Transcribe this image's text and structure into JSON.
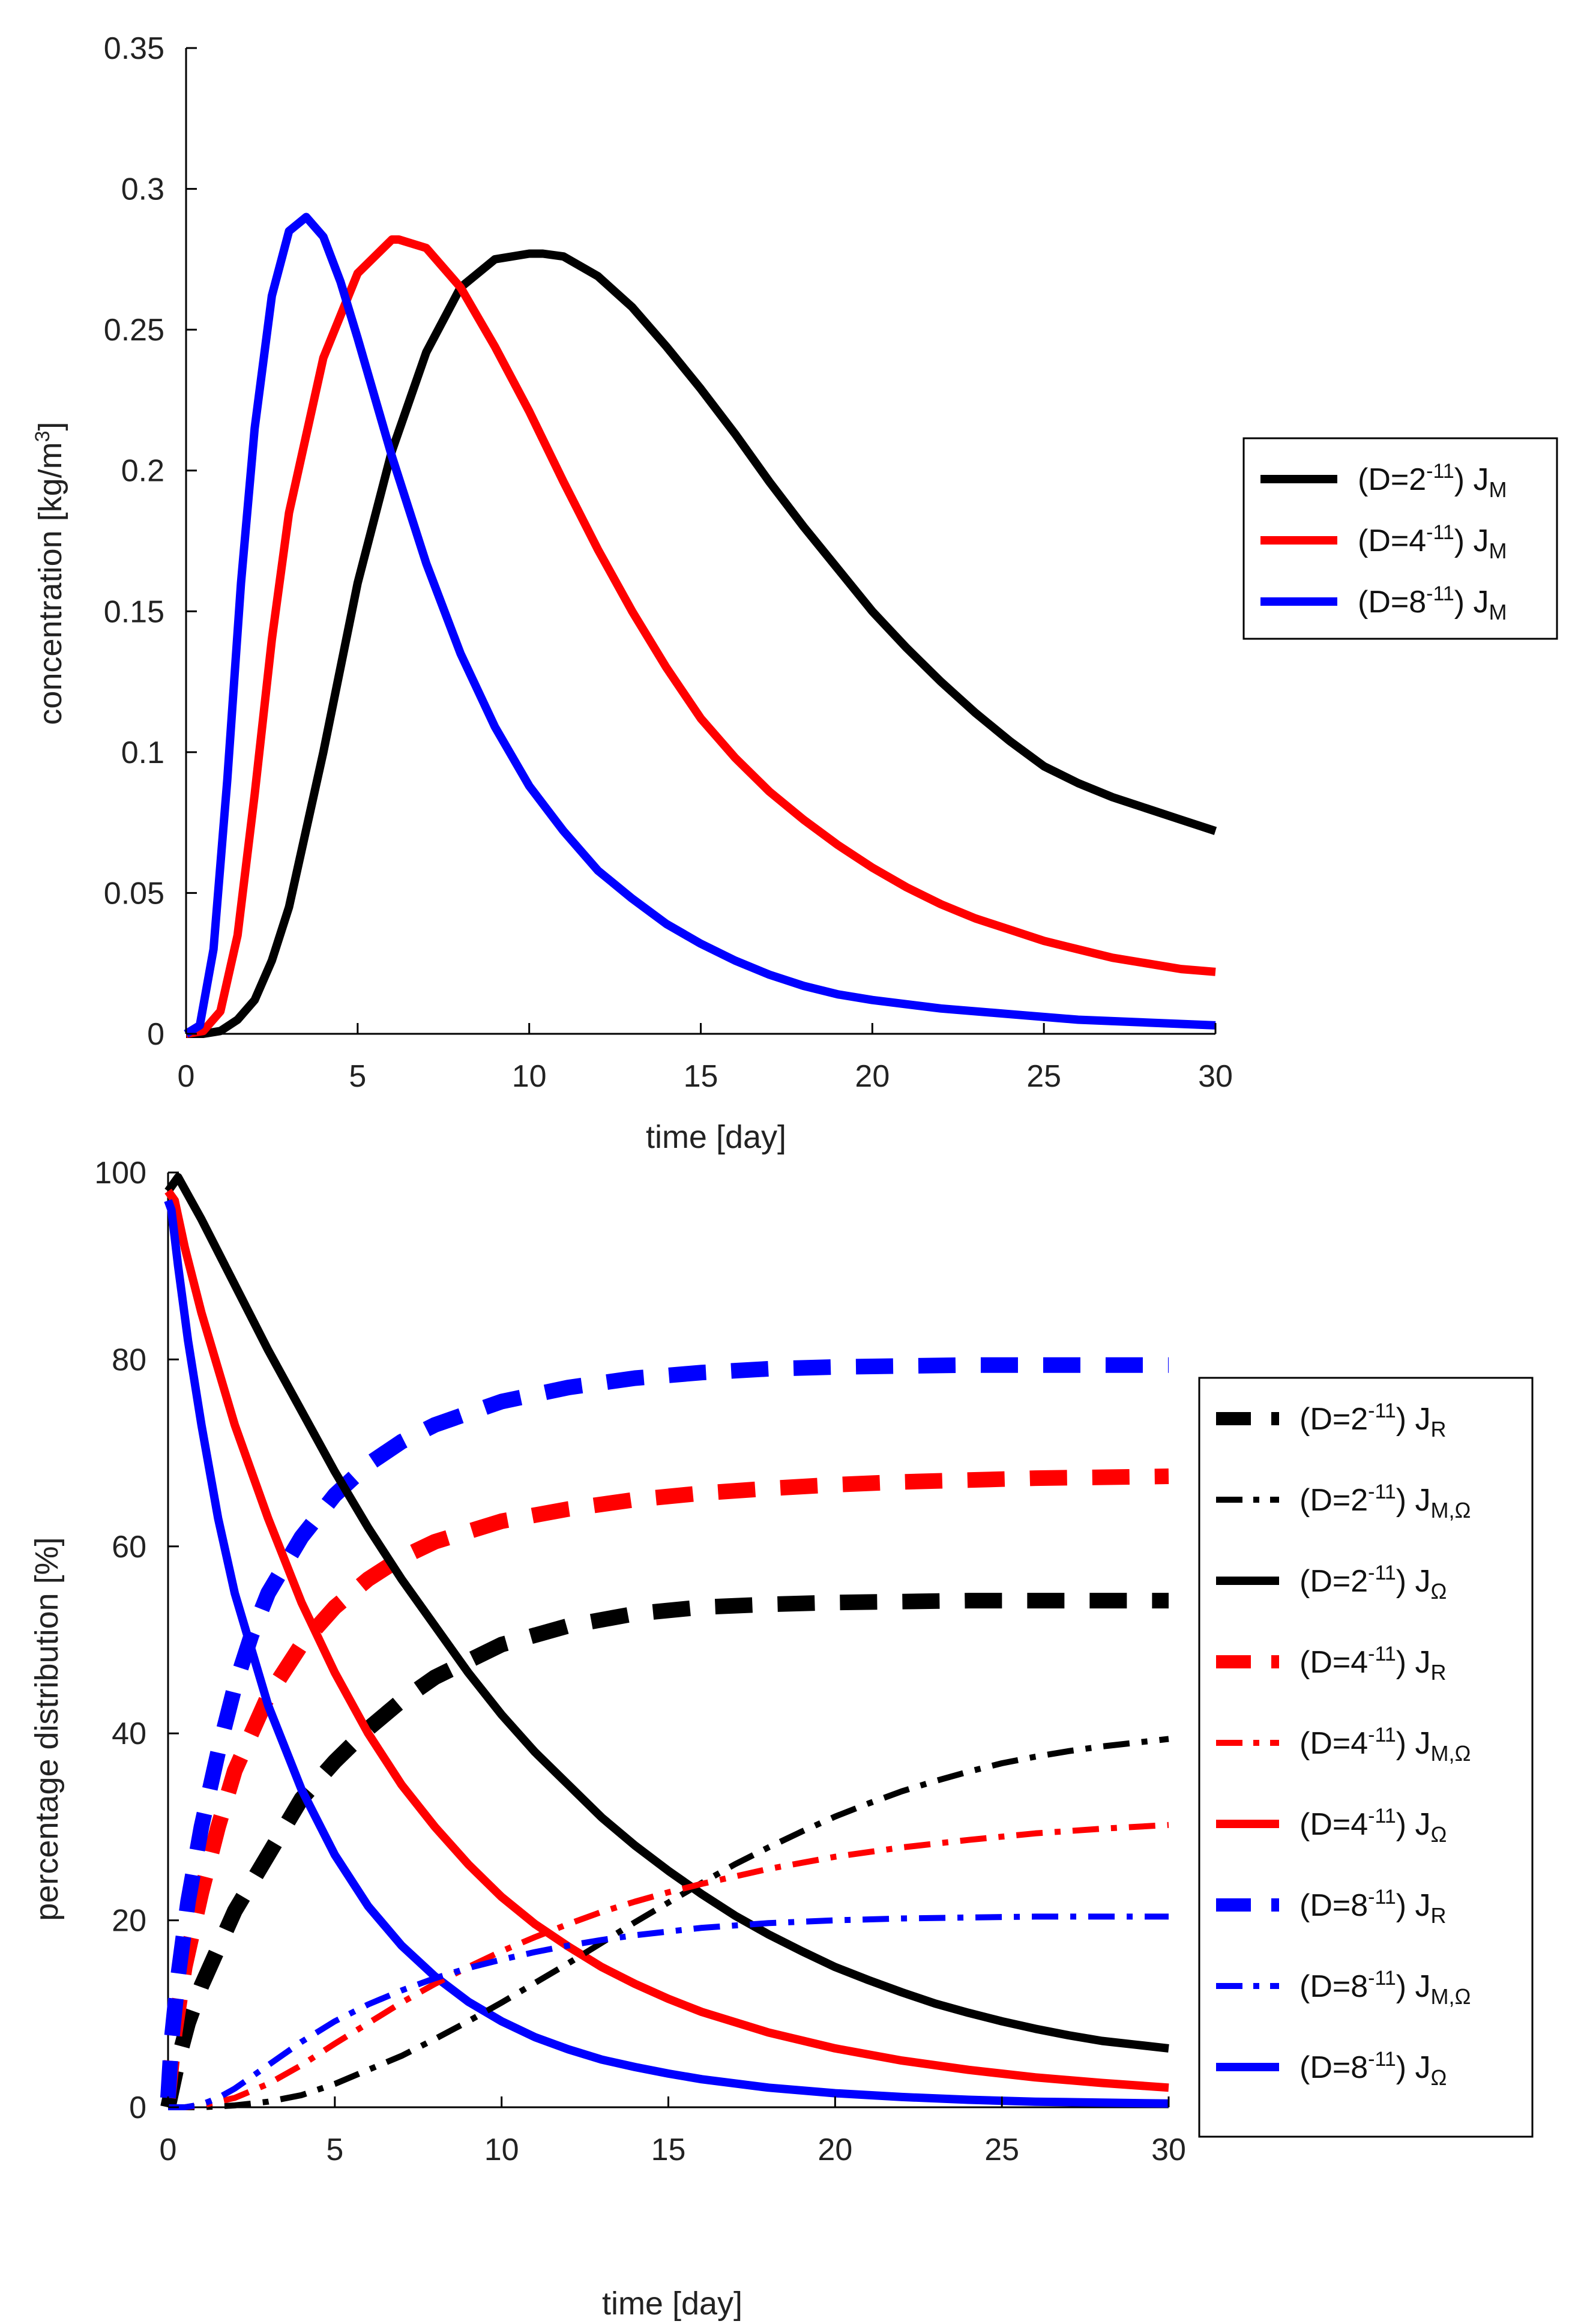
{
  "chart_data": [
    {
      "type": "line",
      "xlabel": "time [day]",
      "ylabel": "concentration [kg/m",
      "ylabel_sup": "3",
      "ylabel_tail": "]",
      "xlim": [
        0,
        30
      ],
      "ylim": [
        0,
        0.35
      ],
      "xticks": [
        0,
        5,
        10,
        15,
        20,
        25,
        30
      ],
      "xtick_labels": [
        "0",
        "5",
        "10",
        "15",
        "20",
        "25",
        "30"
      ],
      "yticks": [
        0,
        0.05,
        0.1,
        0.15,
        0.2,
        0.25,
        0.3,
        0.35
      ],
      "ytick_labels": [
        "0",
        "0.05",
        "0.1",
        "0.15",
        "0.2",
        "0.25",
        "0.3",
        "0.35"
      ],
      "legend_position": "right",
      "series": [
        {
          "name": "(D=2-11) JM",
          "label_pre": "(D=2",
          "label_sup": "-11",
          "label_mid": ") J",
          "label_sub": "M",
          "color": "#000000",
          "style": "solid",
          "x": [
            0,
            0.5,
            1,
            1.5,
            2,
            2.5,
            3,
            4,
            5,
            6,
            7,
            8,
            9,
            10,
            10.4,
            11,
            12,
            13,
            14,
            15,
            16,
            17,
            18,
            19,
            20,
            21,
            22,
            23,
            24,
            25,
            26,
            27,
            28,
            29,
            30
          ],
          "y": [
            0,
            0,
            0.001,
            0.005,
            0.012,
            0.026,
            0.045,
            0.1,
            0.16,
            0.207,
            0.242,
            0.265,
            0.275,
            0.277,
            0.277,
            0.276,
            0.269,
            0.258,
            0.244,
            0.229,
            0.213,
            0.196,
            0.18,
            0.165,
            0.15,
            0.137,
            0.125,
            0.114,
            0.104,
            0.095,
            0.089,
            0.084,
            0.08,
            0.076,
            0.072
          ]
        },
        {
          "name": "(D=4-11) JM",
          "label_pre": "(D=4",
          "label_sup": "-11",
          "label_mid": ") J",
          "label_sub": "M",
          "color": "#ff0000",
          "style": "solid",
          "x": [
            0,
            0.5,
            1,
            1.5,
            2,
            2.5,
            3,
            4,
            5,
            6,
            6.2,
            7,
            8,
            9,
            10,
            11,
            12,
            13,
            14,
            15,
            16,
            17,
            18,
            19,
            20,
            21,
            22,
            23,
            24,
            25,
            26,
            27,
            28,
            29,
            30
          ],
          "y": [
            0,
            0.001,
            0.008,
            0.035,
            0.085,
            0.14,
            0.185,
            0.24,
            0.27,
            0.282,
            0.282,
            0.279,
            0.265,
            0.244,
            0.221,
            0.196,
            0.172,
            0.15,
            0.13,
            0.112,
            0.098,
            0.086,
            0.076,
            0.067,
            0.059,
            0.052,
            0.046,
            0.041,
            0.037,
            0.033,
            0.03,
            0.027,
            0.025,
            0.023,
            0.022
          ]
        },
        {
          "name": "(D=8-11) JM",
          "label_pre": "(D=8",
          "label_sup": "-11",
          "label_mid": ") J",
          "label_sub": "M",
          "color": "#0000ff",
          "style": "solid",
          "x": [
            0,
            0.4,
            0.8,
            1.2,
            1.6,
            2,
            2.5,
            3,
            3.5,
            4,
            4.5,
            5,
            6,
            7,
            8,
            9,
            10,
            11,
            12,
            13,
            14,
            15,
            16,
            17,
            18,
            19,
            20,
            22,
            24,
            26,
            28,
            30
          ],
          "y": [
            0,
            0.003,
            0.03,
            0.09,
            0.16,
            0.215,
            0.262,
            0.285,
            0.29,
            0.283,
            0.267,
            0.247,
            0.205,
            0.167,
            0.135,
            0.109,
            0.088,
            0.072,
            0.058,
            0.048,
            0.039,
            0.032,
            0.026,
            0.021,
            0.017,
            0.014,
            0.012,
            0.009,
            0.007,
            0.005,
            0.004,
            0.003
          ]
        }
      ]
    },
    {
      "type": "line",
      "xlabel": "time [day]",
      "ylabel": "percentage distribution [%]",
      "xlim": [
        0,
        30
      ],
      "ylim": [
        0,
        100
      ],
      "xticks": [
        0,
        5,
        10,
        15,
        20,
        25,
        30
      ],
      "xtick_labels": [
        "0",
        "5",
        "10",
        "15",
        "20",
        "25",
        "30"
      ],
      "yticks": [
        0,
        20,
        40,
        60,
        80,
        100
      ],
      "ytick_labels": [
        "0",
        "20",
        "40",
        "60",
        "80",
        "100"
      ],
      "legend_position": "right",
      "series": [
        {
          "name": "(D=2-11) JR",
          "label_pre": "(D=2",
          "label_sup": "-11",
          "label_mid": ") J",
          "label_sub": "R",
          "color": "#000000",
          "style": "dashed",
          "x": [
            0,
            0.3,
            0.6,
            1,
            1.5,
            2,
            3,
            4,
            5,
            6,
            7,
            8,
            10,
            12,
            14,
            16,
            18,
            20,
            22,
            24,
            26,
            28,
            30
          ],
          "y": [
            0,
            5,
            9,
            13,
            17,
            21,
            27,
            33,
            37,
            40.5,
            43.5,
            46,
            49.5,
            51.5,
            52.8,
            53.5,
            53.8,
            54,
            54.1,
            54.2,
            54.2,
            54.2,
            54.2
          ]
        },
        {
          "name": "(D=2-11) JM,Ω",
          "label_pre": "(D=2",
          "label_sup": "-11",
          "label_mid": ") J",
          "label_sub": "M,Ω",
          "color": "#000000",
          "style": "dashdot",
          "x": [
            0,
            1,
            2,
            3,
            4,
            5,
            6,
            7,
            8,
            9,
            10,
            11,
            12,
            13,
            14,
            15,
            16,
            17,
            18,
            19,
            20,
            21,
            22,
            23,
            24,
            25,
            26,
            27,
            28,
            29,
            30
          ],
          "y": [
            0,
            0,
            0.2,
            0.6,
            1.3,
            2.5,
            4,
            5.5,
            7.3,
            9.2,
            11.2,
            13.3,
            15.4,
            17.6,
            19.8,
            21.9,
            24,
            26,
            27.8,
            29.5,
            31.1,
            32.5,
            33.8,
            34.9,
            35.9,
            36.8,
            37.5,
            38.1,
            38.6,
            39,
            39.4
          ]
        },
        {
          "name": "(D=2-11) JΩ",
          "label_pre": "(D=2",
          "label_sup": "-11",
          "label_mid": ") J",
          "label_sub": "Ω",
          "color": "#000000",
          "style": "solid",
          "x": [
            0,
            0.3,
            1,
            2,
            3,
            4,
            5,
            6,
            7,
            8,
            9,
            10,
            11,
            12,
            13,
            14,
            15,
            16,
            17,
            18,
            19,
            20,
            21,
            22,
            23,
            24,
            25,
            26,
            27,
            28,
            29,
            30
          ],
          "y": [
            98,
            99.5,
            95,
            88,
            81,
            74.5,
            68,
            62,
            56.5,
            51.5,
            46.5,
            42,
            38,
            34.5,
            31,
            28,
            25.3,
            22.8,
            20.5,
            18.5,
            16.7,
            15,
            13.6,
            12.3,
            11.1,
            10.1,
            9.2,
            8.4,
            7.7,
            7.1,
            6.7,
            6.3
          ]
        },
        {
          "name": "(D=4-11) JR",
          "label_pre": "(D=4",
          "label_sup": "-11",
          "label_mid": ") J",
          "label_sub": "R",
          "color": "#ff0000",
          "style": "dashed",
          "x": [
            0,
            0.2,
            0.5,
            1,
            1.5,
            2,
            3,
            4,
            5,
            6,
            7,
            8,
            10,
            12,
            14,
            16,
            18,
            20,
            22,
            24,
            26,
            28,
            30
          ],
          "y": [
            1,
            8,
            15,
            23,
            30,
            36,
            44,
            49.5,
            53.5,
            56.5,
            58.8,
            60.5,
            62.7,
            64,
            65,
            65.7,
            66.2,
            66.6,
            66.9,
            67.1,
            67.3,
            67.4,
            67.5
          ]
        },
        {
          "name": "(D=4-11) JM,Ω",
          "label_pre": "(D=4",
          "label_sup": "-11",
          "label_mid": ") J",
          "label_sub": "M,Ω",
          "color": "#ff0000",
          "style": "dashdot",
          "x": [
            0,
            0.5,
            1,
            2,
            3,
            4,
            5,
            6,
            7,
            8,
            9,
            10,
            11,
            12,
            13,
            14,
            15,
            16,
            18,
            20,
            22,
            24,
            26,
            28,
            30
          ],
          "y": [
            0,
            0,
            0.2,
            1,
            2.5,
            4.5,
            6.8,
            9,
            11.2,
            13.2,
            15,
            16.7,
            18.2,
            19.6,
            20.9,
            22,
            23,
            23.9,
            25.5,
            26.8,
            27.8,
            28.6,
            29.3,
            29.8,
            30.2
          ]
        },
        {
          "name": "(D=4-11) JΩ",
          "label_pre": "(D=4",
          "label_sup": "-11",
          "label_mid": ") J",
          "label_sub": "Ω",
          "color": "#ff0000",
          "style": "solid",
          "x": [
            0,
            0.2,
            0.5,
            1,
            2,
            3,
            4,
            5,
            6,
            7,
            8,
            9,
            10,
            11,
            12,
            13,
            14,
            15,
            16,
            18,
            20,
            22,
            24,
            26,
            28,
            30
          ],
          "y": [
            98,
            97,
            92,
            85,
            73,
            63,
            54,
            46.5,
            40,
            34.5,
            30,
            26,
            22.5,
            19.6,
            17.2,
            15,
            13.2,
            11.6,
            10.2,
            8,
            6.3,
            5,
            4,
            3.2,
            2.6,
            2.1
          ]
        },
        {
          "name": "(D=8-11) JR",
          "label_pre": "(D=8",
          "label_sup": "-11",
          "label_mid": ") J",
          "label_sub": "R",
          "color": "#0000ff",
          "style": "dashed",
          "x": [
            0,
            0.1,
            0.3,
            0.6,
            1,
            1.5,
            2,
            2.5,
            3,
            4,
            5,
            6,
            7,
            8,
            10,
            12,
            14,
            16,
            18,
            20,
            22,
            24,
            26,
            28,
            30
          ],
          "y": [
            1,
            7,
            14,
            22,
            30,
            38,
            45,
            50.5,
            55,
            61,
            65.5,
            68.8,
            71.2,
            73,
            75.5,
            77,
            78,
            78.6,
            79,
            79.2,
            79.3,
            79.4,
            79.4,
            79.4,
            79.4
          ]
        },
        {
          "name": "(D=8-11) JM,Ω",
          "label_pre": "(D=8",
          "label_sup": "-11",
          "label_mid": ") J",
          "label_sub": "M,Ω",
          "color": "#0000ff",
          "style": "dashdot",
          "x": [
            0,
            0.5,
            1,
            1.5,
            2,
            3,
            4,
            5,
            6,
            7,
            8,
            9,
            10,
            11,
            12,
            13,
            14,
            15,
            16,
            18,
            20,
            22,
            24,
            26,
            28,
            30
          ],
          "y": [
            0,
            0,
            0.3,
            1,
            2,
            4.5,
            7,
            9.2,
            11,
            12.5,
            13.8,
            14.9,
            15.8,
            16.6,
            17.3,
            17.9,
            18.4,
            18.8,
            19.2,
            19.7,
            20,
            20.2,
            20.3,
            20.4,
            20.4,
            20.4
          ]
        },
        {
          "name": "(D=8-11) JΩ",
          "label_pre": "(D=8",
          "label_sup": "-11",
          "label_mid": ") J",
          "label_sub": "Ω",
          "color": "#0000ff",
          "style": "solid",
          "x": [
            0,
            0.1,
            0.3,
            0.6,
            1,
            1.5,
            2,
            3,
            4,
            5,
            6,
            7,
            8,
            9,
            10,
            11,
            12,
            13,
            14,
            15,
            16,
            18,
            20,
            22,
            24,
            26,
            28,
            30
          ],
          "y": [
            97,
            96,
            90,
            82,
            73,
            63,
            55,
            43,
            34,
            27,
            21.5,
            17.3,
            14,
            11.3,
            9.2,
            7.5,
            6.2,
            5.1,
            4.3,
            3.6,
            3,
            2.1,
            1.5,
            1.1,
            0.8,
            0.6,
            0.5,
            0.4
          ]
        }
      ]
    }
  ]
}
